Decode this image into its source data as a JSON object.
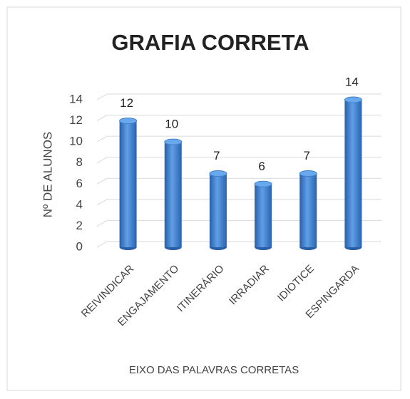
{
  "chart_data": {
    "type": "bar",
    "title": "GRAFIA CORRETA",
    "xlabel": "EIXO DAS PALAVRAS CORRETAS",
    "ylabel": "Nº DE ALUNOS",
    "categories": [
      "REIVINDICAR",
      "ENGAJAMENTO",
      "ITINERÁRIO",
      "IRRADIAR",
      "IDIOTICE",
      "ESPINGARDA"
    ],
    "values": [
      12,
      10,
      7,
      6,
      7,
      14
    ],
    "color": "#3b7dd0",
    "ylim": [
      0,
      14
    ],
    "yticks": [
      0,
      2,
      4,
      6,
      8,
      10,
      12,
      14
    ],
    "grid": true
  }
}
